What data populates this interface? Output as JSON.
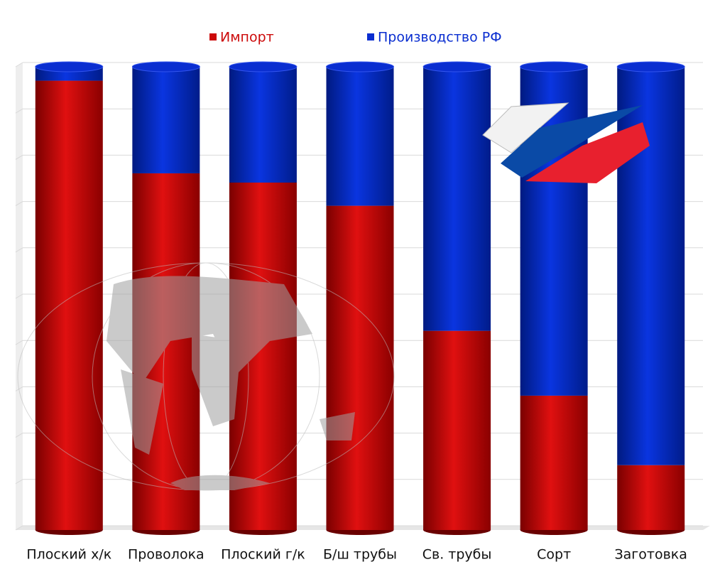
{
  "chart_data": {
    "type": "stacked-cylinder",
    "categories": [
      "Плоский х/к",
      "Проволока",
      "Плоский г/к",
      "Б/ш трубы",
      "Св. трубы",
      "Сорт",
      "Заготовка"
    ],
    "series": [
      {
        "name": "Импорт",
        "color": "#cc0a0a",
        "values": [
          97,
          77,
          75,
          70,
          43,
          29,
          14
        ]
      },
      {
        "name": "Производство РФ",
        "color": "#0a2ed0",
        "values": [
          3,
          23,
          25,
          30,
          57,
          71,
          86
        ]
      }
    ],
    "ylim": [
      0,
      100
    ],
    "yticks": [
      0,
      10,
      20,
      30,
      40,
      50,
      60,
      70,
      80,
      90,
      100
    ],
    "grid": true
  }
}
